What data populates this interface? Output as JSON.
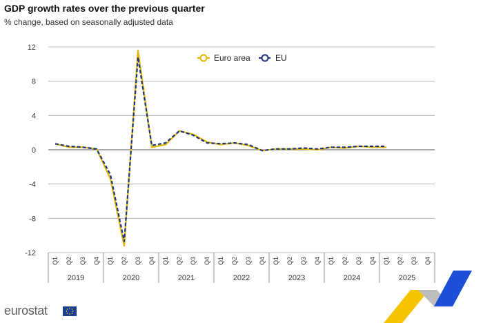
{
  "header": {
    "title": "GDP growth rates over the previous quarter",
    "subtitle": "% change, based on seasonally adjusted data"
  },
  "branding": {
    "logo_text": "eurostat"
  },
  "colors": {
    "euro_area": "#e3b505",
    "eu": "#1c3578",
    "grid": "#a9a9a9",
    "axis": "#555555"
  },
  "chart_data": {
    "type": "line",
    "title": "GDP growth rates over the previous quarter",
    "subtitle": "% change, based on seasonally adjusted data",
    "ylim": [
      -12,
      12
    ],
    "yticks": [
      "12",
      "8",
      "4",
      "0",
      "-4",
      "-8",
      "-12"
    ],
    "ytick_values": [
      12,
      8,
      4,
      0,
      -4,
      -8,
      -12
    ],
    "legend_position": "top-center",
    "grid": true,
    "years": [
      "2019",
      "2020",
      "2021",
      "2022",
      "2023",
      "2024",
      "2025"
    ],
    "quarter_labels": [
      "Q1",
      "Q2",
      "Q3",
      "Q4"
    ],
    "x": [
      "2019-Q1",
      "2019-Q2",
      "2019-Q3",
      "2019-Q4",
      "2020-Q1",
      "2020-Q2",
      "2020-Q3",
      "2020-Q4",
      "2021-Q1",
      "2021-Q2",
      "2021-Q3",
      "2021-Q4",
      "2022-Q1",
      "2022-Q2",
      "2022-Q3",
      "2022-Q4",
      "2023-Q1",
      "2023-Q2",
      "2023-Q3",
      "2023-Q4",
      "2024-Q1",
      "2024-Q2",
      "2024-Q3",
      "2024-Q4",
      "2025-Q1",
      "2025-Q2",
      "2025-Q3",
      "2025-Q4"
    ],
    "series": [
      {
        "name": "Euro area",
        "color": "#e3b505",
        "values": [
          0.7,
          0.3,
          0.3,
          0.1,
          -3.4,
          -11.2,
          11.6,
          0.3,
          0.6,
          2.2,
          1.8,
          0.9,
          0.6,
          0.8,
          0.5,
          -0.1,
          0.1,
          0.1,
          0.1,
          0.0,
          0.3,
          0.2,
          0.4,
          0.3,
          0.3,
          null,
          null,
          null
        ]
      },
      {
        "name": "EU",
        "color": "#1c3578",
        "values": [
          0.7,
          0.4,
          0.3,
          0.1,
          -2.9,
          -10.7,
          10.8,
          0.5,
          0.8,
          2.2,
          1.7,
          0.8,
          0.7,
          0.8,
          0.6,
          -0.1,
          0.1,
          0.1,
          0.2,
          0.1,
          0.3,
          0.3,
          0.4,
          0.4,
          0.4,
          null,
          null,
          null
        ]
      }
    ]
  }
}
